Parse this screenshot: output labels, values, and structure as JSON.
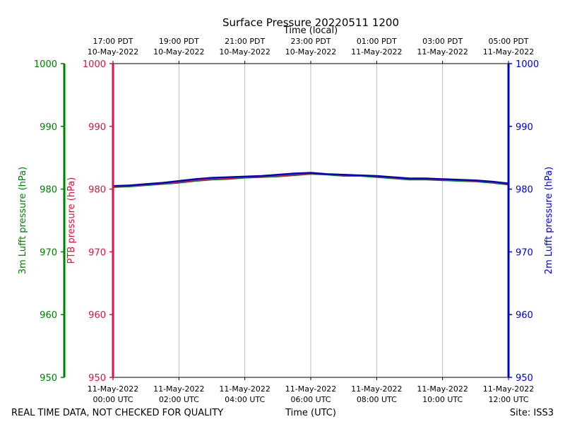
{
  "chart_data": {
    "type": "line",
    "title": "Surface Pressure 20220511 1200",
    "top_axis_label": "Time (local)",
    "bottom_axis_label": "Time (UTC)",
    "footer_left": "REAL TIME DATA, NOT CHECKED FOR QUALITY",
    "footer_right": "Site: ISS3",
    "x_range_hours": [
      0,
      12
    ],
    "ylim": [
      950,
      1000
    ],
    "y_ticks": [
      950,
      960,
      970,
      980,
      990,
      1000
    ],
    "grid": "vertical",
    "top_ticks": [
      {
        "hour": 0,
        "line1": "17:00 PDT",
        "line2": "10-May-2022"
      },
      {
        "hour": 2,
        "line1": "19:00 PDT",
        "line2": "10-May-2022"
      },
      {
        "hour": 4,
        "line1": "21:00 PDT",
        "line2": "10-May-2022"
      },
      {
        "hour": 6,
        "line1": "23:00 PDT",
        "line2": "10-May-2022"
      },
      {
        "hour": 8,
        "line1": "01:00 PDT",
        "line2": "11-May-2022"
      },
      {
        "hour": 10,
        "line1": "03:00 PDT",
        "line2": "11-May-2022"
      },
      {
        "hour": 12,
        "line1": "05:00 PDT",
        "line2": "11-May-2022"
      }
    ],
    "bottom_ticks": [
      {
        "hour": 0,
        "line1": "11-May-2022",
        "line2": "00:00 UTC"
      },
      {
        "hour": 2,
        "line1": "11-May-2022",
        "line2": "02:00 UTC"
      },
      {
        "hour": 4,
        "line1": "11-May-2022",
        "line2": "04:00 UTC"
      },
      {
        "hour": 6,
        "line1": "11-May-2022",
        "line2": "06:00 UTC"
      },
      {
        "hour": 8,
        "line1": "11-May-2022",
        "line2": "08:00 UTC"
      },
      {
        "hour": 10,
        "line1": "11-May-2022",
        "line2": "10:00 UTC"
      },
      {
        "hour": 12,
        "line1": "11-May-2022",
        "line2": "12:00 UTC"
      }
    ],
    "axes": [
      {
        "name": "3m Lufft pressure (hPa)",
        "color": "#008000",
        "side": "left-outer"
      },
      {
        "name": "PTB pressure (hPa)",
        "color": "#dc143c",
        "side": "left-inner"
      },
      {
        "name": "2m Lufft pressure (hPa)",
        "color": "#0000cd",
        "side": "right"
      }
    ],
    "x": [
      0,
      0.5,
      1,
      1.5,
      2,
      2.5,
      3,
      3.5,
      4,
      4.5,
      5,
      5.5,
      6,
      6.5,
      7,
      7.5,
      8,
      8.5,
      9,
      9.5,
      10,
      10.5,
      11,
      11.5,
      12
    ],
    "series": [
      {
        "name": "3m Lufft pressure",
        "color": "#008000",
        "values": [
          980.3,
          980.4,
          980.6,
          980.8,
          981.0,
          981.3,
          981.5,
          981.6,
          981.8,
          981.9,
          982.0,
          982.2,
          982.4,
          982.3,
          982.1,
          982.1,
          981.9,
          981.7,
          981.5,
          981.5,
          981.4,
          981.3,
          981.2,
          981.0,
          980.7
        ]
      },
      {
        "name": "PTB pressure",
        "color": "#dc143c",
        "values": [
          980.4,
          980.5,
          980.7,
          980.9,
          981.1,
          981.4,
          981.6,
          981.7,
          981.9,
          982.0,
          982.1,
          982.3,
          982.5,
          982.4,
          982.2,
          982.2,
          982.0,
          981.8,
          981.6,
          981.6,
          981.5,
          981.4,
          981.3,
          981.1,
          980.8
        ]
      },
      {
        "name": "2m Lufft pressure",
        "color": "#0000cd",
        "values": [
          980.5,
          980.6,
          980.8,
          981.0,
          981.3,
          981.6,
          981.8,
          981.9,
          982.0,
          982.1,
          982.3,
          982.5,
          982.6,
          982.4,
          982.3,
          982.2,
          982.1,
          981.9,
          981.7,
          981.7,
          981.6,
          981.5,
          981.4,
          981.2,
          980.9
        ]
      }
    ]
  }
}
